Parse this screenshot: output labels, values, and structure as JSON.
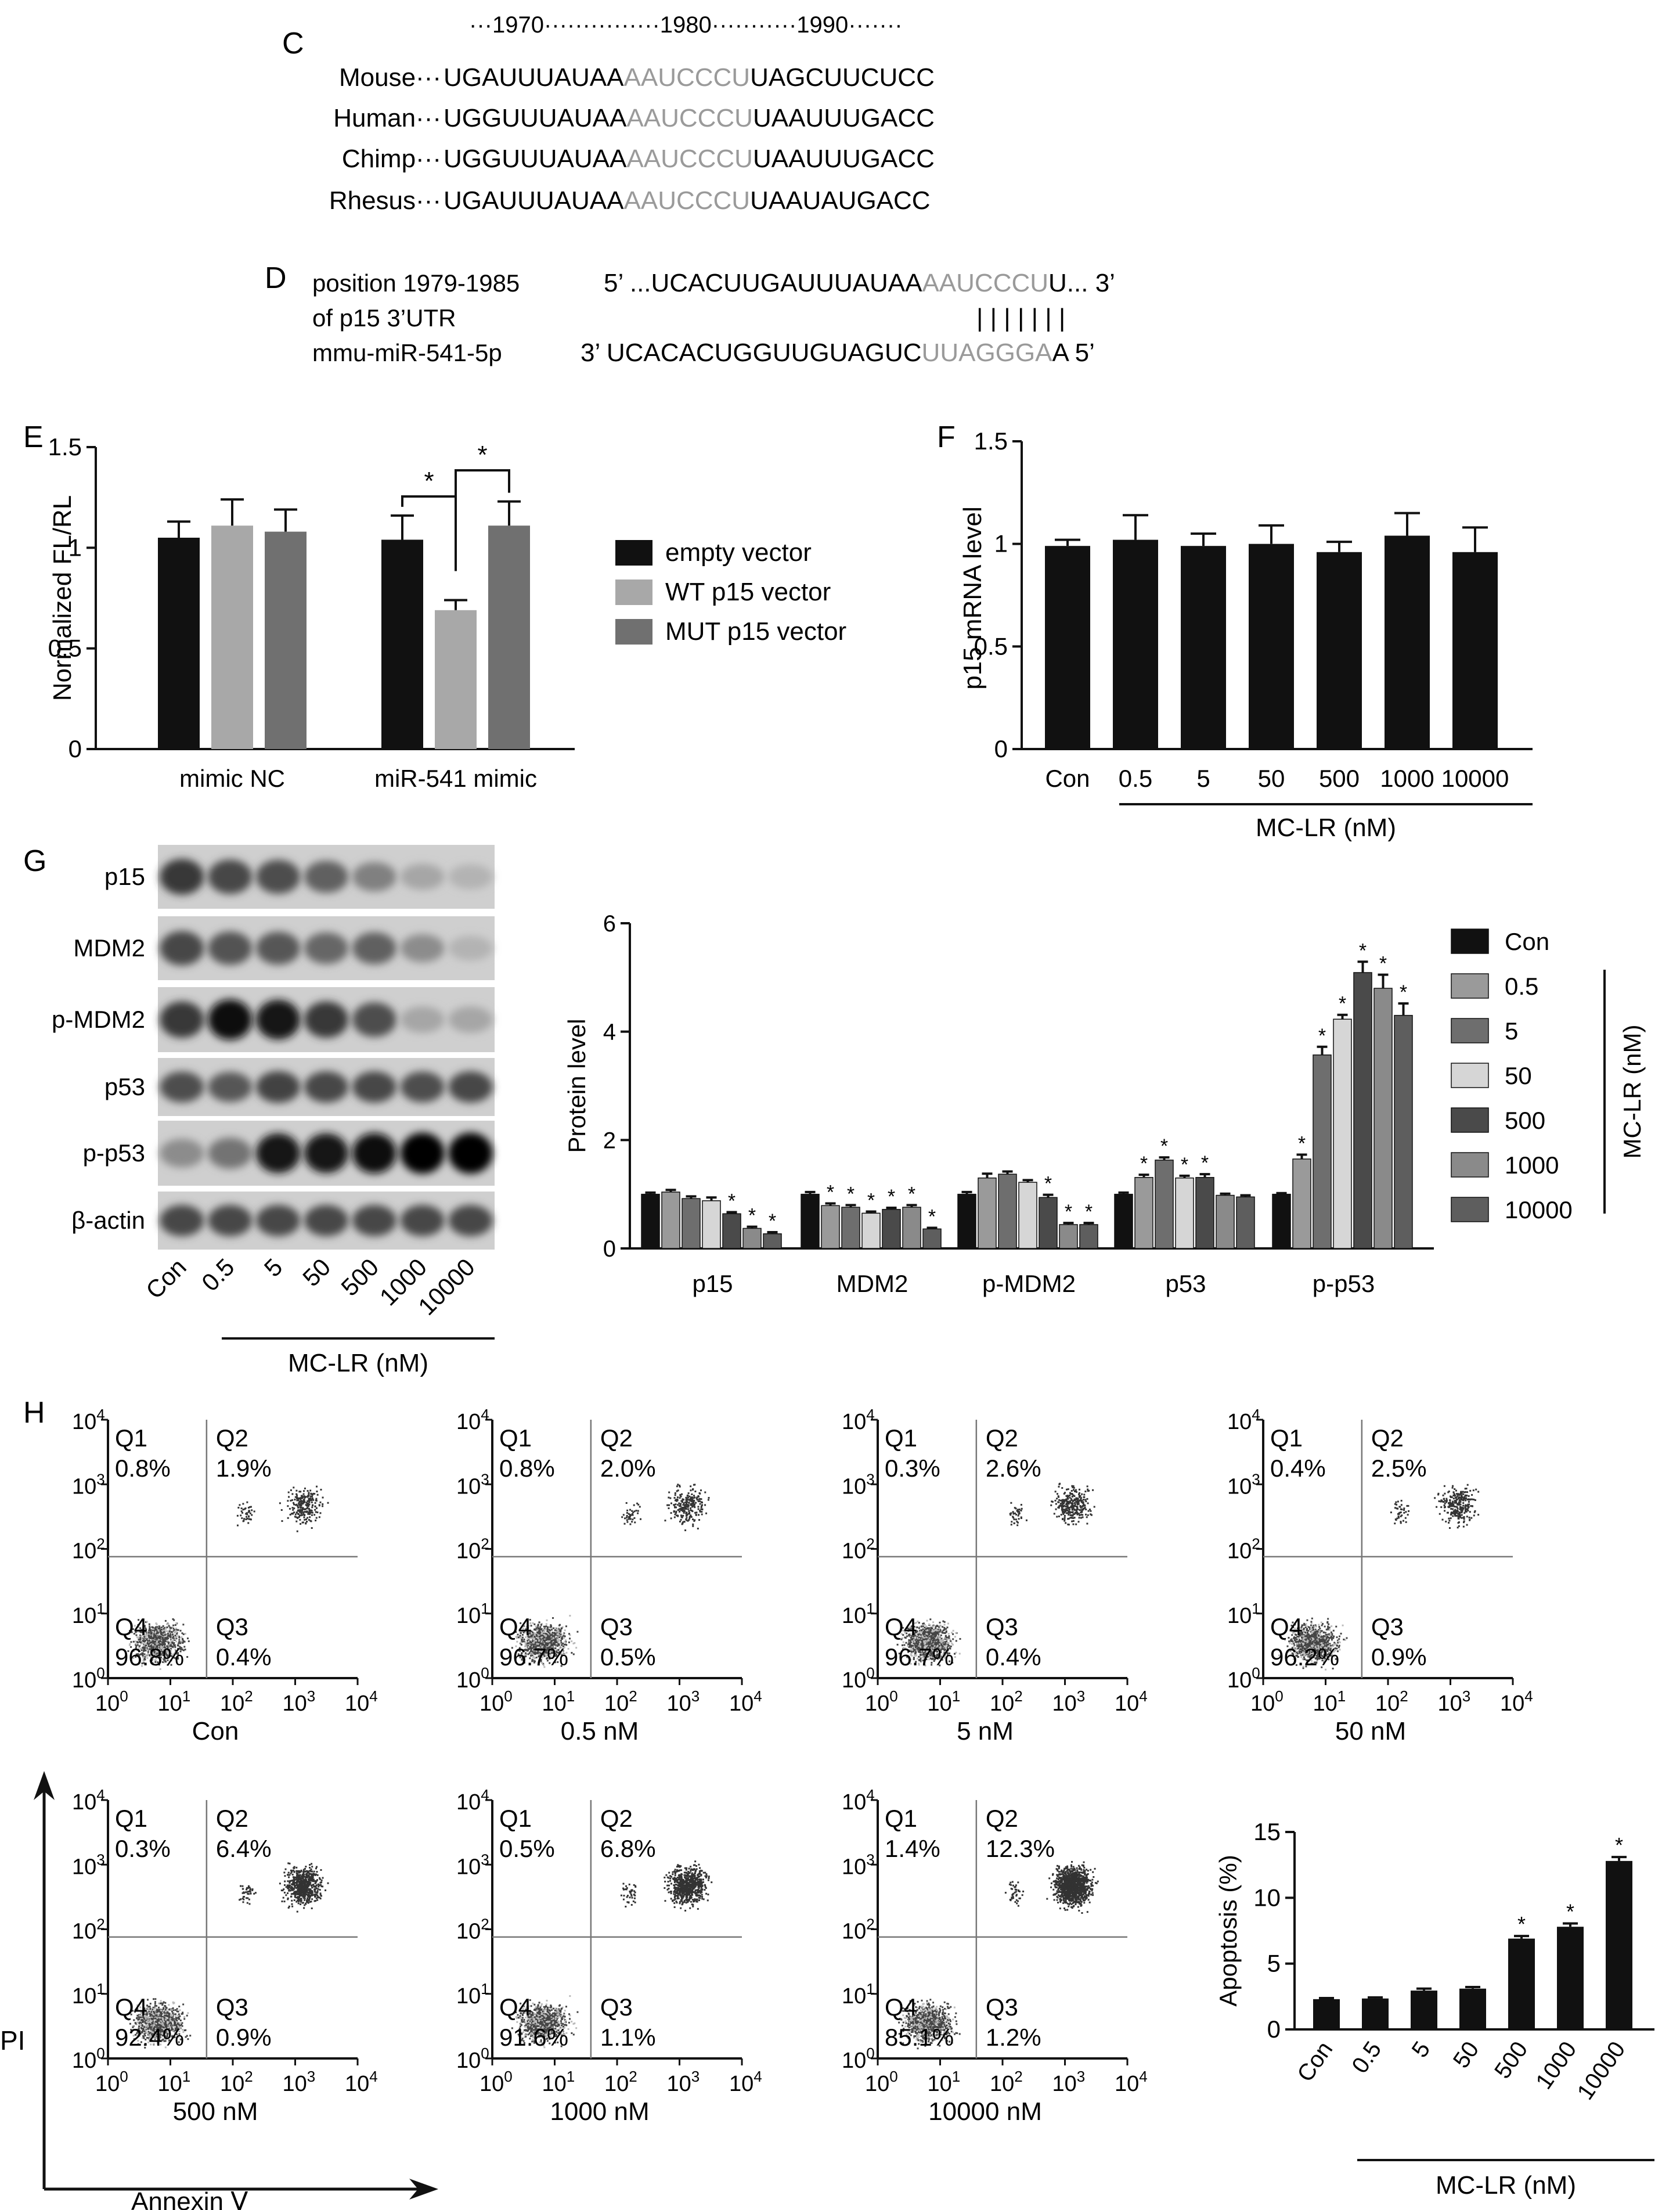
{
  "panel_C": {
    "letter": "C",
    "ruler": {
      "dots_left": "···",
      "n1970": "1970",
      "dots_a": "···············",
      "n1980": "1980",
      "dots_b": "···········",
      "n1990": "1990",
      "dots_right": "·······"
    },
    "rows": [
      {
        "species": "Mouse···",
        "pre": "UGAUUUAUAA",
        "site": "AAUCCCU",
        "post": "UAGCUUCUCC"
      },
      {
        "species": "Human···",
        "pre": "UGGUUUAUAA",
        "site": "AAUCCCU",
        "post": "UAAUUUGACC"
      },
      {
        "species": "Chimp···",
        "pre": "UGGUUUAUAA",
        "site": "AAUCCCU",
        "post": "UAAUUUGACC"
      },
      {
        "species": "Rhesus···",
        "pre": "UGAUUUAUAA",
        "site": "AAUCCCU",
        "post": "UAAUAUGACC"
      }
    ]
  },
  "panel_D": {
    "letter": "D",
    "label_lines": [
      "position 1979-1985",
      "of p15 3’UTR",
      "mmu-miR-541-5p"
    ],
    "top": {
      "pre": "5’ ...UCACUUGAUUUAUAA",
      "site": "AAUCCCU",
      "post": "U... 3’"
    },
    "pairing": "| | | | | | |",
    "bottom": {
      "pre": "3’ UCACACUGGUUGUAGUC",
      "site": "UUAGGGA",
      "post": "A 5’"
    }
  },
  "panel_E": {
    "letter": "E",
    "chart_data": {
      "type": "bar",
      "ylabel": "Normalized FL/RL",
      "ylim": [
        0,
        1.5
      ],
      "yticks": [
        "0",
        "0.5",
        "1",
        "1.5"
      ],
      "categories": [
        "mimic NC",
        "miR-541 mimic"
      ],
      "series": [
        {
          "name": "empty vector",
          "color": "#111111",
          "values": [
            1.05,
            1.04
          ],
          "errors": [
            0.08,
            0.12
          ]
        },
        {
          "name": "WT p15 vector",
          "color": "#a8a8a8",
          "values": [
            1.11,
            0.69
          ],
          "errors": [
            0.13,
            0.05
          ]
        },
        {
          "name": "MUT p15 vector",
          "color": "#707070",
          "values": [
            1.08,
            1.11
          ],
          "errors": [
            0.11,
            0.12
          ]
        }
      ],
      "significance": [
        "*",
        "*"
      ]
    }
  },
  "panel_F": {
    "letter": "F",
    "chart_data": {
      "type": "bar",
      "ylabel": "p15 mRNA level",
      "ylim": [
        0,
        1.5
      ],
      "yticks": [
        "0",
        "0.5",
        "1",
        "1.5"
      ],
      "categories": [
        "Con",
        "0.5",
        "5",
        "50",
        "500",
        "1000",
        "10000"
      ],
      "values": [
        0.99,
        1.02,
        0.99,
        1.0,
        0.96,
        1.04,
        0.96
      ],
      "errors": [
        0.03,
        0.12,
        0.06,
        0.09,
        0.05,
        0.11,
        0.12
      ],
      "group_label": "MC-LR (nM)"
    }
  },
  "panel_G": {
    "letter": "G",
    "blot_labels": [
      "p15",
      "MDM2",
      "p-MDM2",
      "p53",
      "p-p53",
      "β-actin"
    ],
    "lane_labels": [
      "Con",
      "0.5",
      "5",
      "50",
      "500",
      "1000",
      "10000"
    ],
    "group_label": "MC-LR (nM)",
    "chart_data": {
      "type": "bar",
      "ylabel": "Protein level",
      "ylim": [
        0,
        6
      ],
      "yticks": [
        "0",
        "2",
        "4",
        "6"
      ],
      "categories": [
        "p15",
        "MDM2",
        "p-MDM2",
        "p53",
        "p-p53"
      ],
      "series": [
        {
          "name": "Con",
          "color": "#111111",
          "values": [
            1.0,
            1.0,
            1.0,
            1.0,
            1.0
          ],
          "errors": [
            0.03,
            0.04,
            0.04,
            0.03,
            0.02
          ],
          "sig": [
            false,
            false,
            false,
            false,
            false
          ]
        },
        {
          "name": "0.5",
          "color": "#9a9a9a",
          "values": [
            1.04,
            0.79,
            1.3,
            1.31,
            1.65
          ],
          "errors": [
            0.04,
            0.04,
            0.08,
            0.05,
            0.08
          ],
          "sig": [
            false,
            true,
            false,
            true,
            true
          ]
        },
        {
          "name": "5",
          "color": "#6e6e6e",
          "values": [
            0.92,
            0.76,
            1.37,
            1.63,
            3.57
          ],
          "errors": [
            0.04,
            0.04,
            0.05,
            0.05,
            0.15
          ],
          "sig": [
            false,
            true,
            false,
            true,
            true
          ]
        },
        {
          "name": "50",
          "color": "#d6d6d6",
          "values": [
            0.88,
            0.65,
            1.22,
            1.3,
            4.23
          ],
          "errors": [
            0.06,
            0.03,
            0.04,
            0.04,
            0.08
          ],
          "sig": [
            false,
            true,
            false,
            true,
            true
          ]
        },
        {
          "name": "500",
          "color": "#4a4a4a",
          "values": [
            0.64,
            0.72,
            0.94,
            1.31,
            5.09
          ],
          "errors": [
            0.03,
            0.03,
            0.05,
            0.06,
            0.2
          ],
          "sig": [
            true,
            true,
            true,
            true,
            true
          ]
        },
        {
          "name": "1000",
          "color": "#8a8a8a",
          "values": [
            0.37,
            0.76,
            0.44,
            0.98,
            4.8
          ],
          "errors": [
            0.03,
            0.04,
            0.03,
            0.03,
            0.25
          ],
          "sig": [
            true,
            true,
            true,
            false,
            true
          ]
        },
        {
          "name": "10000",
          "color": "#5e5e5e",
          "values": [
            0.27,
            0.36,
            0.44,
            0.95,
            4.3
          ],
          "errors": [
            0.03,
            0.02,
            0.03,
            0.03,
            0.22
          ],
          "sig": [
            true,
            true,
            true,
            false,
            true
          ]
        }
      ],
      "legend_group_label": "MC-LR (nM)"
    }
  },
  "panel_H": {
    "letter": "H",
    "plots": [
      {
        "caption": "Con",
        "q1": "0.8%",
        "q2": "1.9%",
        "q3": "0.4%",
        "q4": "96.8%"
      },
      {
        "caption": "0.5 nM",
        "q1": "0.8%",
        "q2": "2.0%",
        "q3": "0.5%",
        "q4": "96.7%"
      },
      {
        "caption": "5 nM",
        "q1": "0.3%",
        "q2": "2.6%",
        "q3": "0.4%",
        "q4": "96.7%"
      },
      {
        "caption": "50 nM",
        "q1": "0.4%",
        "q2": "2.5%",
        "q3": "0.9%",
        "q4": "96.2%"
      },
      {
        "caption": "500 nM",
        "q1": "0.3%",
        "q2": "6.4%",
        "q3": "0.9%",
        "q4": "92.4%"
      },
      {
        "caption": "1000 nM",
        "q1": "0.5%",
        "q2": "6.8%",
        "q3": "1.1%",
        "q4": "91.6%"
      },
      {
        "caption": "10000 nM",
        "q1": "1.4%",
        "q2": "12.3%",
        "q3": "1.2%",
        "q4": "85.1%"
      }
    ],
    "quadrant_names": [
      "Q1",
      "Q2",
      "Q3",
      "Q4"
    ],
    "axis_y_label": "PI",
    "axis_x_label": "Annexin Ⅴ",
    "decade_base": "10",
    "decade_exponents": [
      "0",
      "1",
      "2",
      "3",
      "4"
    ],
    "chart_data": {
      "type": "bar",
      "ylabel": "Apoptosis (%)",
      "ylim": [
        0,
        15
      ],
      "yticks": [
        "0",
        "5",
        "10",
        "15"
      ],
      "categories": [
        "Con",
        "0.5",
        "5",
        "50",
        "500",
        "1000",
        "10000"
      ],
      "values": [
        2.3,
        2.35,
        2.95,
        3.1,
        6.9,
        7.8,
        12.8
      ],
      "errors": [
        0.08,
        0.08,
        0.15,
        0.12,
        0.2,
        0.25,
        0.3
      ],
      "significant": [
        false,
        false,
        false,
        false,
        true,
        true,
        true
      ],
      "group_label": "MC-LR (nM)"
    }
  }
}
